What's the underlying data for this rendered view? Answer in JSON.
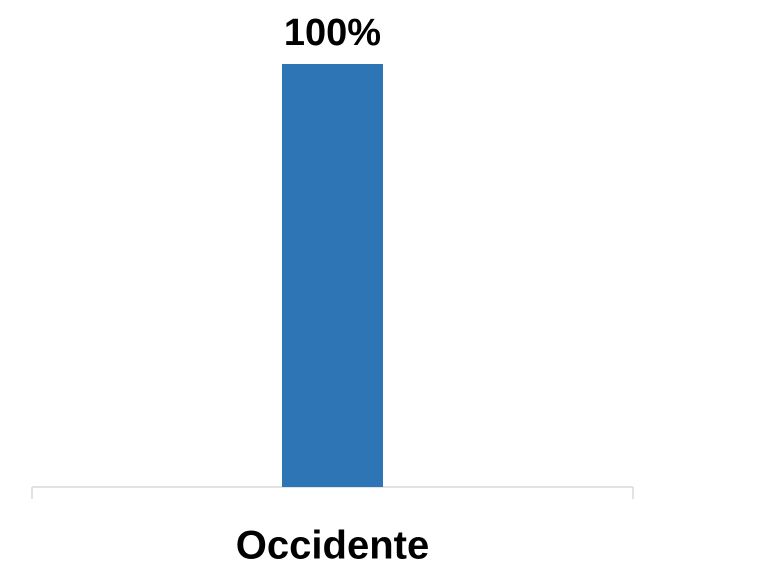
{
  "chart_data": {
    "type": "bar",
    "categories": [
      "Occidente"
    ],
    "values": [
      100
    ],
    "value_labels": [
      "100%"
    ],
    "color": "#2e75b6"
  }
}
